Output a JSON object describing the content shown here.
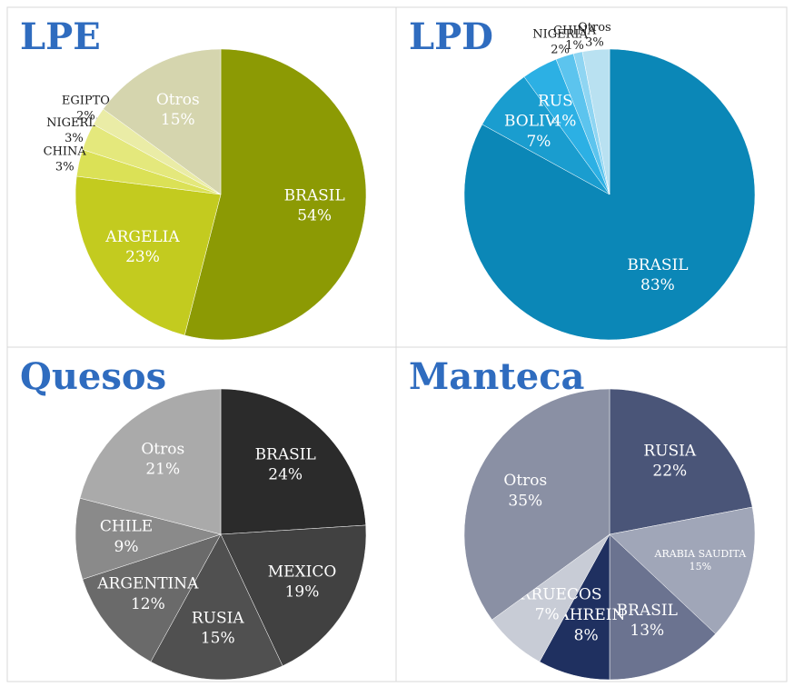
{
  "chart_data": [
    {
      "type": "pie",
      "title": "LPE",
      "categories": [
        "BRASIL",
        "ARGELIA",
        "CHINA",
        "NIGERIA",
        "EGIPTO",
        "Otros"
      ],
      "values": [
        54,
        23,
        3,
        3,
        2,
        15
      ],
      "value_labels": [
        "54%",
        "23%",
        "3%",
        "3%",
        "2%",
        "15%"
      ],
      "colors": [
        "#8c9a04",
        "#c3cb1f",
        "#dbe156",
        "#e4e87c",
        "#eaeca6",
        "#d5d5ae"
      ]
    },
    {
      "type": "pie",
      "title": "LPD",
      "categories": [
        "BRASIL",
        "BOLIVIA",
        "RUSIA",
        "NIGERIA",
        "CHINA",
        "Otros"
      ],
      "values": [
        83,
        7,
        4,
        2,
        1,
        3
      ],
      "value_labels": [
        "83%",
        "7%",
        "4%",
        "2%",
        "1%",
        "3%"
      ],
      "colors": [
        "#0b87b7",
        "#1a9dcf",
        "#2cb0e4",
        "#5cc4ee",
        "#8fd5f2",
        "#b9e1f1"
      ]
    },
    {
      "type": "pie",
      "title": "Quesos",
      "categories": [
        "BRASIL",
        "MEXICO",
        "RUSIA",
        "ARGENTINA",
        "CHILE",
        "Otros"
      ],
      "values": [
        24,
        19,
        15,
        12,
        9,
        21
      ],
      "value_labels": [
        "24%",
        "19%",
        "15%",
        "12%",
        "9%",
        "21%"
      ],
      "colors": [
        "#2b2b2b",
        "#414141",
        "#505050",
        "#6a6a6a",
        "#8a8a8a",
        "#aaaaaa"
      ]
    },
    {
      "type": "pie",
      "title": "Manteca",
      "categories": [
        "RUSIA",
        "ARABIA SAUDITA",
        "BRASIL",
        "BAHREIN",
        "MARRUECOS",
        "Otros"
      ],
      "values": [
        22,
        15,
        13,
        8,
        7,
        35
      ],
      "value_labels": [
        "22%",
        "15%",
        "13%",
        "8%",
        "7%",
        "35%"
      ],
      "colors": [
        "#4a5578",
        "#a0a6b8",
        "#6b7390",
        "#1f3060",
        "#c8ccd6",
        "#8a90a4"
      ]
    }
  ]
}
